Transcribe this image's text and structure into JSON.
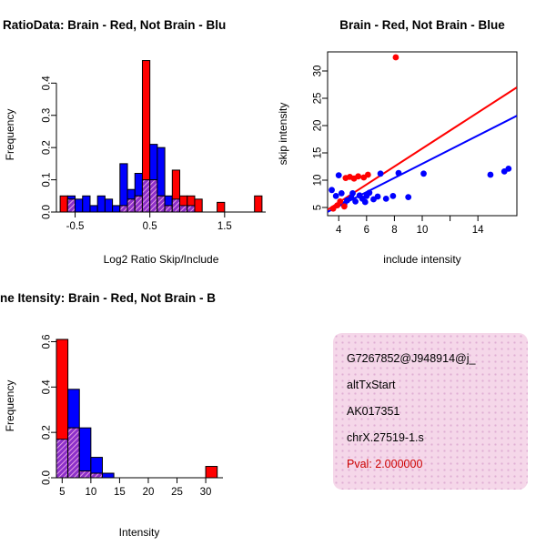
{
  "chart_data": [
    {
      "type": "bar",
      "subtype": "overlaid-histogram",
      "title": "RatioData: Brain - Red, Not Brain - Blu",
      "xlabel": "Log2 Ratio Skip/Include",
      "ylabel": "Frequency",
      "xlim": [
        -0.75,
        2.05
      ],
      "ylim": [
        0,
        0.48
      ],
      "xticks": [
        -0.5,
        0.5,
        1.5
      ],
      "xtick_labels": [
        "-0.5",
        "0.5",
        "1.5"
      ],
      "yticks": [
        0.0,
        0.1,
        0.2,
        0.3,
        0.4
      ],
      "ytick_labels": [
        "0.0",
        "0.1",
        "0.2",
        "0.3",
        "0.4"
      ],
      "bin_width": 0.1,
      "grid": false,
      "legend": "none",
      "series": [
        {
          "name": "Brain",
          "color": "#FF0000"
        },
        {
          "name": "Not Brain",
          "color": "#0000FF"
        }
      ],
      "bins": [
        [
          -0.7,
          0.05,
          0.0
        ],
        [
          -0.6,
          0.04,
          0.05
        ],
        [
          -0.5,
          0.0,
          0.04
        ],
        [
          -0.4,
          0.0,
          0.05
        ],
        [
          -0.3,
          0.0,
          0.02
        ],
        [
          -0.2,
          0.0,
          0.05
        ],
        [
          -0.1,
          0.0,
          0.04
        ],
        [
          0.0,
          0.0,
          0.02
        ],
        [
          0.1,
          0.02,
          0.15
        ],
        [
          0.2,
          0.04,
          0.07
        ],
        [
          0.3,
          0.05,
          0.12
        ],
        [
          0.4,
          0.47,
          0.1
        ],
        [
          0.5,
          0.1,
          0.21
        ],
        [
          0.6,
          0.05,
          0.2
        ],
        [
          0.7,
          0.02,
          0.05
        ],
        [
          0.8,
          0.13,
          0.04
        ],
        [
          0.9,
          0.05,
          0.02
        ],
        [
          1.0,
          0.05,
          0.02
        ],
        [
          1.1,
          0.04,
          0.0
        ],
        [
          1.4,
          0.03,
          0.0
        ],
        [
          1.9,
          0.05,
          0.0
        ]
      ]
    },
    {
      "type": "scatter",
      "title": "Brain - Red, Not Brain - Blue",
      "xlabel": "include intensity",
      "ylabel": "skip intensity",
      "xlim": [
        3.2,
        16.8
      ],
      "ylim": [
        3.5,
        33.5
      ],
      "xticks": [
        4,
        6,
        8,
        10,
        12,
        14
      ],
      "xtick_labels": [
        "4",
        "6",
        "8",
        "10",
        "",
        "14"
      ],
      "yticks": [
        5,
        10,
        15,
        20,
        25,
        30
      ],
      "ytick_labels": [
        "5",
        "10",
        "15",
        "20",
        "25",
        "30"
      ],
      "grid": false,
      "legend": "none",
      "box": true,
      "series": [
        {
          "name": "Brain",
          "color": "#FF0000",
          "fit_line": {
            "x": [
              3.2,
              16.8
            ],
            "y": [
              4.6,
              27.0
            ]
          },
          "points": [
            [
              3.6,
              4.8
            ],
            [
              3.9,
              5.4
            ],
            [
              4.1,
              6.1
            ],
            [
              4.4,
              5.2
            ],
            [
              4.5,
              10.4
            ],
            [
              4.8,
              10.6
            ],
            [
              5.1,
              10.3
            ],
            [
              5.4,
              10.7
            ],
            [
              5.8,
              10.5
            ],
            [
              6.1,
              11.0
            ],
            [
              8.1,
              32.5
            ]
          ]
        },
        {
          "name": "Not Brain",
          "color": "#0000FF",
          "fit_line": {
            "x": [
              3.2,
              16.8
            ],
            "y": [
              4.2,
              21.8
            ]
          },
          "points": [
            [
              3.5,
              8.2
            ],
            [
              3.8,
              7.1
            ],
            [
              4.0,
              10.9
            ],
            [
              4.2,
              7.6
            ],
            [
              4.4,
              5.6
            ],
            [
              4.6,
              6.3
            ],
            [
              4.9,
              6.8
            ],
            [
              5.0,
              7.6
            ],
            [
              5.2,
              6.1
            ],
            [
              5.5,
              7.2
            ],
            [
              5.7,
              6.6
            ],
            [
              5.9,
              6.0
            ],
            [
              6.0,
              7.1
            ],
            [
              6.2,
              7.7
            ],
            [
              6.5,
              6.5
            ],
            [
              6.8,
              7.0
            ],
            [
              7.0,
              11.2
            ],
            [
              7.4,
              6.6
            ],
            [
              7.9,
              7.1
            ],
            [
              8.3,
              11.3
            ],
            [
              9.0,
              6.9
            ],
            [
              10.1,
              11.2
            ],
            [
              14.9,
              11.0
            ],
            [
              15.9,
              11.6
            ],
            [
              16.2,
              12.1
            ]
          ]
        }
      ]
    },
    {
      "type": "bar",
      "subtype": "overlaid-histogram",
      "title": "ne Itensity: Brain - Red, Not Brain - B",
      "xlabel": "Intensity",
      "ylabel": "Frequency",
      "xlim": [
        4,
        33
      ],
      "ylim": [
        0,
        0.63
      ],
      "xticks": [
        5,
        10,
        15,
        20,
        25,
        30
      ],
      "xtick_labels": [
        "5",
        "10",
        "15",
        "20",
        "25",
        "30"
      ],
      "yticks": [
        0.0,
        0.2,
        0.4,
        0.6
      ],
      "ytick_labels": [
        "0.0",
        "0.2",
        "0.4",
        "0.6"
      ],
      "bin_width": 2,
      "grid": false,
      "legend": "none",
      "series": [
        {
          "name": "Brain",
          "color": "#FF0000"
        },
        {
          "name": "Not Brain",
          "color": "#0000FF"
        }
      ],
      "bins": [
        [
          4,
          0.61,
          0.17
        ],
        [
          6,
          0.22,
          0.39
        ],
        [
          8,
          0.03,
          0.22
        ],
        [
          10,
          0.02,
          0.09
        ],
        [
          12,
          0.0,
          0.02
        ],
        [
          30,
          0.05,
          0.0
        ]
      ]
    }
  ],
  "info_box": {
    "lines": [
      "G7267852@J948914@j_",
      "altTxStart",
      "AK017351",
      "chrX.27519-1.s"
    ],
    "pval": "Pval: 2.000000",
    "pval_color": "#CC0000",
    "bg_color": "#F5D7E9",
    "dot_color": "#DFAED3"
  },
  "theme": {
    "red": "#FF0000",
    "blue": "#0000FF",
    "overlap_base": "#8B2FC9",
    "overlap_stripe": "#EFA9E6",
    "axis_color": "#000000",
    "background": "#FFFFFF"
  }
}
